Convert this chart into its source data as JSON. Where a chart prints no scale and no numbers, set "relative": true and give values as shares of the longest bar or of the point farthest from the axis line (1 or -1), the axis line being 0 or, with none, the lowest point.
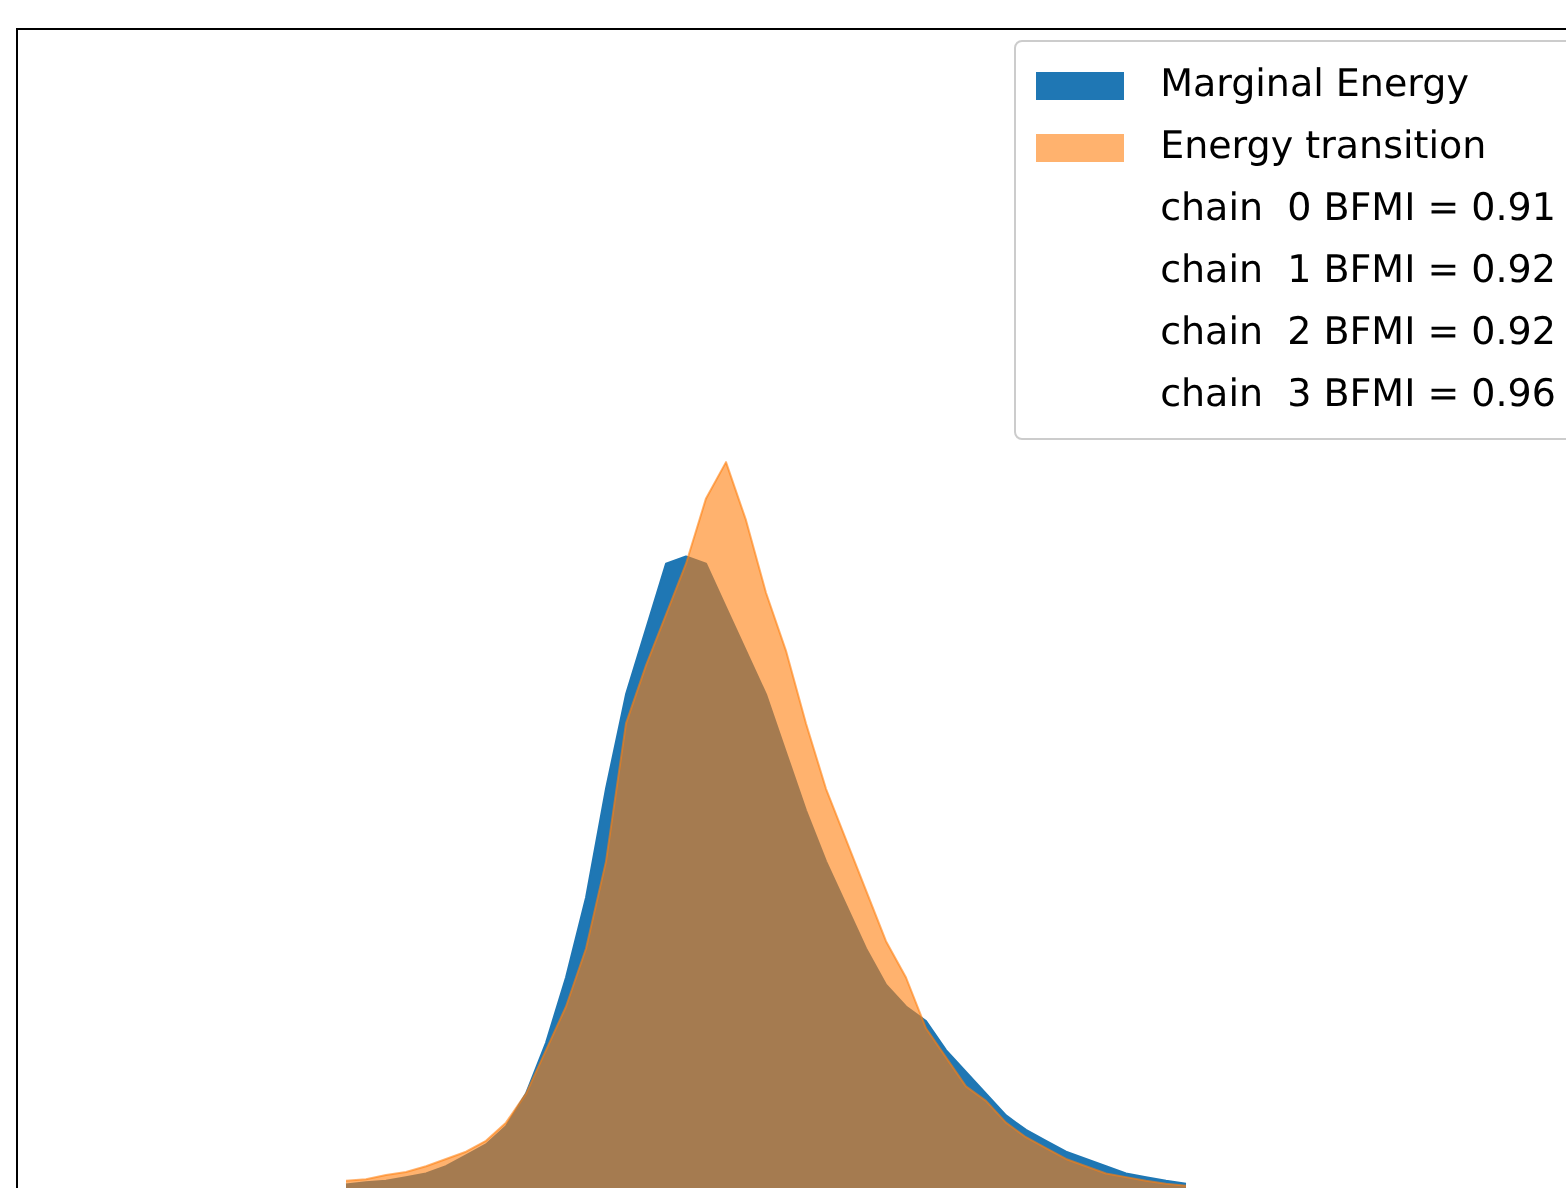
{
  "chart_data": {
    "type": "area",
    "relative": true,
    "legend": "top right",
    "categories": [
      null,
      null,
      null,
      null,
      null,
      null,
      null,
      null,
      null,
      null,
      null,
      null,
      null,
      null,
      null,
      null,
      null,
      null,
      null,
      null,
      null,
      null,
      null,
      null,
      null,
      null,
      null,
      null,
      null,
      null,
      null,
      null,
      null,
      null,
      null,
      null,
      null,
      null,
      null,
      null,
      null,
      null,
      null
    ],
    "series": [
      {
        "name": "Marginal Energy",
        "color": "#1f77b4",
        "values": [
          0.005,
          0.008,
          0.01,
          0.015,
          0.02,
          0.03,
          0.045,
          0.06,
          0.085,
          0.13,
          0.2,
          0.29,
          0.4,
          0.55,
          0.68,
          0.77,
          0.86,
          0.87,
          0.86,
          0.8,
          0.74,
          0.68,
          0.6,
          0.52,
          0.45,
          0.39,
          0.33,
          0.28,
          0.25,
          0.23,
          0.19,
          0.16,
          0.13,
          0.1,
          0.08,
          0.065,
          0.05,
          0.04,
          0.03,
          0.02,
          0.015,
          0.01,
          0.006
        ]
      },
      {
        "name": "Energy transition",
        "color": "#ff7f0e",
        "values": [
          0.01,
          0.012,
          0.018,
          0.022,
          0.03,
          0.04,
          0.05,
          0.065,
          0.09,
          0.13,
          0.19,
          0.25,
          0.33,
          0.45,
          0.64,
          0.72,
          0.79,
          0.86,
          0.95,
          1,
          0.92,
          0.82,
          0.74,
          0.64,
          0.55,
          0.48,
          0.41,
          0.34,
          0.29,
          0.22,
          0.18,
          0.14,
          0.12,
          0.09,
          0.07,
          0.055,
          0.04,
          0.03,
          0.02,
          0.015,
          0.01,
          0.006,
          0.003
        ]
      }
    ],
    "annotations": [
      "chain  0 BFMI = 0.91",
      "chain  1 BFMI = 0.92",
      "chain  2 BFMI = 0.92",
      "chain  3 BFMI = 0.96"
    ]
  }
}
